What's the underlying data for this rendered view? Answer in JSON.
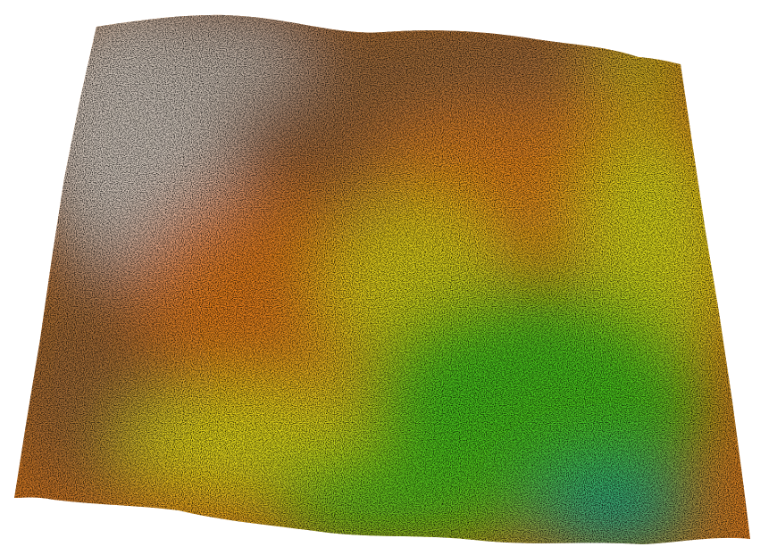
{
  "terrain": {
    "description_visible_text": "",
    "colors": {
      "peak_gray": "#d8cfc6",
      "high_brown": "#a8672e",
      "mid_orange": "#e8801a",
      "low_yellow": "#e8e21a",
      "lower_green": "#3cc81a",
      "lowest_teal": "#1aa88c",
      "background": "#ffffff"
    },
    "elevation_zones": [
      "peak-gray-zone",
      "brown-highland-zone",
      "orange-slope-zone",
      "yellow-slope-zone",
      "green-lowland-zone",
      "teal-basin-zone"
    ]
  }
}
